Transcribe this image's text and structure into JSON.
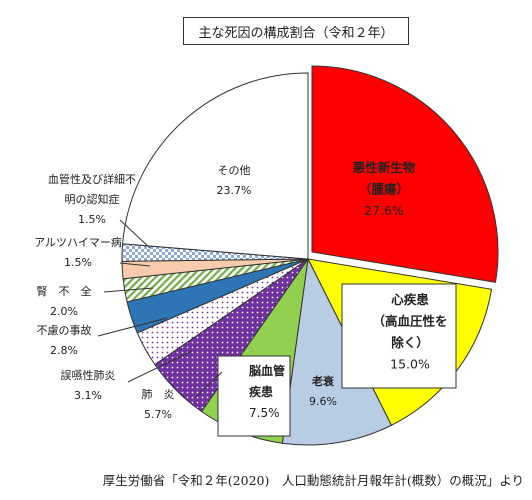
{
  "chart_data": {
    "type": "pie",
    "title": "主な死因の構成割合（令和２年）",
    "source": "厚生労働省「令和２年(2020)　人口動態統計月報年計(概数）の概況」より",
    "slices": [
      {
        "label_lines": [
          "悪性新生物",
          "（腫瘍）"
        ],
        "value": 27.6,
        "value_text": "27.6%",
        "color": "#ff0000",
        "pattern": "solid"
      },
      {
        "label_lines": [
          "心疾患",
          "（高血圧性を",
          "除く）"
        ],
        "value": 15.0,
        "value_text": "15.0%",
        "color": "#ffff00",
        "pattern": "solid"
      },
      {
        "label_lines": [
          "老衰"
        ],
        "value": 9.6,
        "value_text": "9.6%",
        "color": "#b8cce4",
        "pattern": "solid"
      },
      {
        "label_lines": [
          "脳血管",
          "疾患"
        ],
        "value": 7.5,
        "value_text": "7.5%",
        "color": "#92d050",
        "pattern": "solid"
      },
      {
        "label_lines": [
          "肺　炎"
        ],
        "value": 5.7,
        "value_text": "5.7%",
        "color": "#7030a0",
        "pattern": "dots-white"
      },
      {
        "label_lines": [
          "誤嚥性肺炎"
        ],
        "value": 3.1,
        "value_text": "3.1%",
        "color": "#ffffff",
        "pattern": "dots-purple"
      },
      {
        "label_lines": [
          "不慮の事故"
        ],
        "value": 2.8,
        "value_text": "2.8%",
        "color": "#2e75b6",
        "pattern": "solid"
      },
      {
        "label_lines": [
          "腎　不　全"
        ],
        "value": 2.0,
        "value_text": "2.0%",
        "color": "#c6efce",
        "pattern": "stripes-green"
      },
      {
        "label_lines": [
          "アルツハイマー病"
        ],
        "value": 1.5,
        "value_text": "1.5%",
        "color": "#f8cbad",
        "pattern": "solid"
      },
      {
        "label_lines": [
          "血管性及び詳細不",
          "明の認知症"
        ],
        "value": 1.5,
        "value_text": "1.5%",
        "color": "#ffffff",
        "pattern": "checks-blue"
      },
      {
        "label_lines": [
          "その他"
        ],
        "value": 23.7,
        "value_text": "23.7%",
        "color": "#ffffff",
        "pattern": "solid"
      }
    ]
  }
}
